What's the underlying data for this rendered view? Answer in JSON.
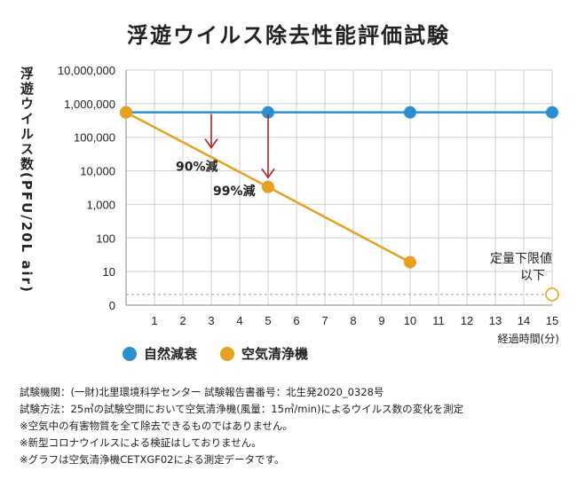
{
  "title": "浮遊ウイルス除去性能評価試験",
  "chart_data": {
    "type": "line",
    "title": "浮遊ウイルス除去性能評価試験",
    "ylabel": "浮遊ウイルス数(PFU/20L air)",
    "xlabel": "経過時間(分)",
    "y_scale": "log",
    "y_ticks": [
      "10,000,000",
      "1,000,000",
      "100,000",
      "10,000",
      "1,000",
      "100",
      "10",
      "0"
    ],
    "x_ticks": [
      "1",
      "2",
      "3",
      "4",
      "5",
      "6",
      "7",
      "8",
      "9",
      "10",
      "11",
      "12",
      "13",
      "14",
      "15"
    ],
    "xlim": [
      0,
      15
    ],
    "grid": true,
    "legend_position": "bottom",
    "series": [
      {
        "name": "自然減衰",
        "color": "#2a8fcf",
        "points": [
          {
            "x": 0,
            "y": 550000
          },
          {
            "x": 5,
            "y": 550000
          },
          {
            "x": 10,
            "y": 550000
          },
          {
            "x": 15,
            "y": 550000
          }
        ]
      },
      {
        "name": "空気清浄機",
        "color": "#e8a020",
        "points": [
          {
            "x": 0,
            "y": 550000
          },
          {
            "x": 5,
            "y": 3300
          },
          {
            "x": 10,
            "y": 19
          },
          {
            "x": 15,
            "y": 0,
            "below_limit": true
          }
        ]
      }
    ],
    "annotations": [
      {
        "text": "90%減",
        "x": 3
      },
      {
        "text": "99%減",
        "x": 5
      },
      {
        "text": "定量下限値以下",
        "x": 15
      }
    ],
    "arrow_color": "#b22222",
    "detection_limit_line_color": "#999999"
  },
  "notes": [
    "試験機関：(一財)北里環境科学センター 試験報告書番号：北生発2020_0328号",
    "試験方法：25㎥の試験空間において空気清浄機(風量：15㎥/min)によるウイルス数の変化を測定",
    "※空気中の有害物質を全て除去できるものではありません。",
    "※新型コロナウイルスによる検証はしておりません。",
    "※グラフは空気清浄機CETXGF02による測定データです。"
  ]
}
